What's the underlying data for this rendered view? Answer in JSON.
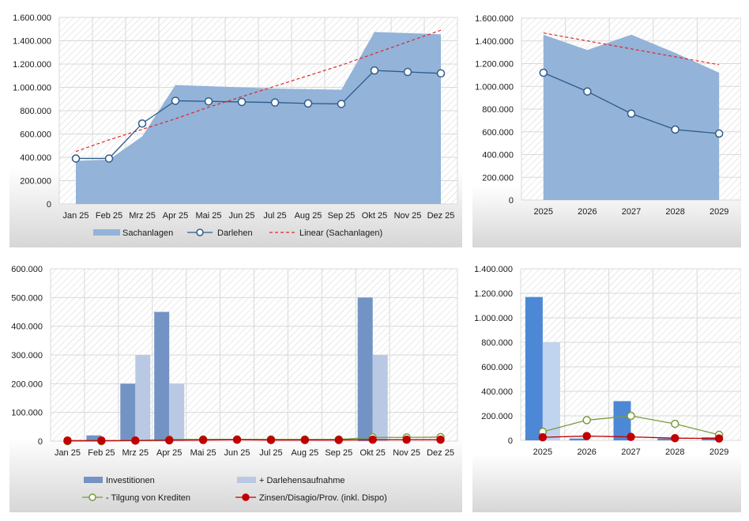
{
  "colors": {
    "area": "#93b3d8",
    "line": "#2f5b8c",
    "trend": "#e0262a",
    "bar1": "#7393c5",
    "bar2": "#b9c9e4",
    "bar1_alt": "#4d88d6",
    "bar2_alt": "#c0d3ef",
    "green": "#7a9a3c",
    "red": "#c00000",
    "grid": "#d9d9d9"
  },
  "chart_data": [
    {
      "id": "monthly-assets",
      "type": "area",
      "categories": [
        "Jan 25",
        "Feb 25",
        "Mrz 25",
        "Apr 25",
        "Mai 25",
        "Jun 25",
        "Jul 25",
        "Aug 25",
        "Sep 25",
        "Okt 25",
        "Nov 25",
        "Dez 25"
      ],
      "ylim": [
        0,
        1600000
      ],
      "yticks": [
        "0",
        "200.000",
        "400.000",
        "600.000",
        "800.000",
        "1.000.000",
        "1.200.000",
        "1.400.000",
        "1.600.000"
      ],
      "series": [
        {
          "name": "Sachanlagen",
          "type": "area",
          "values": [
            370000,
            380000,
            580000,
            1020000,
            1010000,
            1000000,
            990000,
            985000,
            980000,
            1475000,
            1465000,
            1455000
          ]
        },
        {
          "name": "Darlehen",
          "type": "line",
          "values": [
            390000,
            390000,
            690000,
            885000,
            880000,
            875000,
            870000,
            862000,
            858000,
            1145000,
            1132000,
            1120000
          ]
        },
        {
          "name": "Linear (Sachanlagen)",
          "type": "trend",
          "values": [
            450000,
            550000,
            640000,
            730000,
            830000,
            920000,
            1010000,
            1100000,
            1190000,
            1290000,
            1390000,
            1490000
          ]
        }
      ],
      "grid": true,
      "legend": "bottom"
    },
    {
      "id": "yearly-assets",
      "type": "area",
      "categories": [
        "2025",
        "2026",
        "2027",
        "2028",
        "2029"
      ],
      "ylim": [
        0,
        1600000
      ],
      "yticks": [
        "0",
        "200.000",
        "400.000",
        "600.000",
        "800.000",
        "1.000.000",
        "1.200.000",
        "1.400.000",
        "1.600.000"
      ],
      "series": [
        {
          "name": "Sachanlagen",
          "type": "area",
          "values": [
            1455000,
            1320000,
            1455000,
            1295000,
            1120000
          ]
        },
        {
          "name": "Darlehen",
          "type": "line",
          "values": [
            1120000,
            955000,
            760000,
            620000,
            585000
          ]
        },
        {
          "name": "Linear (Sachanlagen)",
          "type": "trend",
          "values": [
            1470000,
            1400000,
            1330000,
            1260000,
            1190000
          ]
        }
      ],
      "grid": true,
      "legend": "none"
    },
    {
      "id": "monthly-cashflow",
      "type": "bar",
      "categories": [
        "Jan 25",
        "Feb 25",
        "Mrz 25",
        "Apr 25",
        "Mai 25",
        "Jun 25",
        "Jul 25",
        "Aug 25",
        "Sep 25",
        "Okt 25",
        "Nov 25",
        "Dez 25"
      ],
      "ylim": [
        0,
        600000
      ],
      "yticks": [
        "0",
        "100.000",
        "200.000",
        "300.000",
        "400.000",
        "500.000",
        "600.000"
      ],
      "series": [
        {
          "name": "Investitionen",
          "type": "bar",
          "values": [
            0,
            20000,
            200000,
            450000,
            0,
            0,
            0,
            0,
            0,
            500000,
            0,
            0
          ]
        },
        {
          "name": "+ Darlehensaufnahme",
          "type": "bar",
          "values": [
            0,
            0,
            300000,
            200000,
            0,
            0,
            0,
            0,
            0,
            300000,
            0,
            0
          ]
        },
        {
          "name": "- Tilgung von Krediten",
          "type": "line",
          "values": [
            0,
            0,
            2000,
            6000,
            6000,
            6000,
            6000,
            6000,
            6000,
            13000,
            13000,
            14000
          ]
        },
        {
          "name": "Zinsen/Disagio/Prov. (inkl. Dispo)",
          "type": "line",
          "values": [
            2000,
            2000,
            2000,
            3000,
            4000,
            5000,
            4000,
            4000,
            4000,
            5000,
            5000,
            5000
          ]
        }
      ],
      "grid": true,
      "legend": "bottom"
    },
    {
      "id": "yearly-cashflow",
      "type": "bar",
      "categories": [
        "2025",
        "2026",
        "2027",
        "2028",
        "2029"
      ],
      "ylim": [
        0,
        1400000
      ],
      "yticks": [
        "0",
        "200.000",
        "400.000",
        "600.000",
        "800.000",
        "1.000.000",
        "1.200.000",
        "1.400.000"
      ],
      "series": [
        {
          "name": "Investitionen",
          "type": "bar",
          "values": [
            1170000,
            15000,
            320000,
            15000,
            25000
          ]
        },
        {
          "name": "+ Darlehensaufnahme",
          "type": "bar",
          "values": [
            800000,
            0,
            0,
            0,
            0
          ]
        },
        {
          "name": "- Tilgung von Krediten",
          "type": "line",
          "values": [
            70000,
            165000,
            200000,
            135000,
            45000
          ]
        },
        {
          "name": "Zinsen/Disagio/Prov. (inkl. Dispo)",
          "type": "line",
          "values": [
            25000,
            35000,
            28000,
            18000,
            15000
          ]
        }
      ],
      "grid": true,
      "legend": "none"
    }
  ]
}
